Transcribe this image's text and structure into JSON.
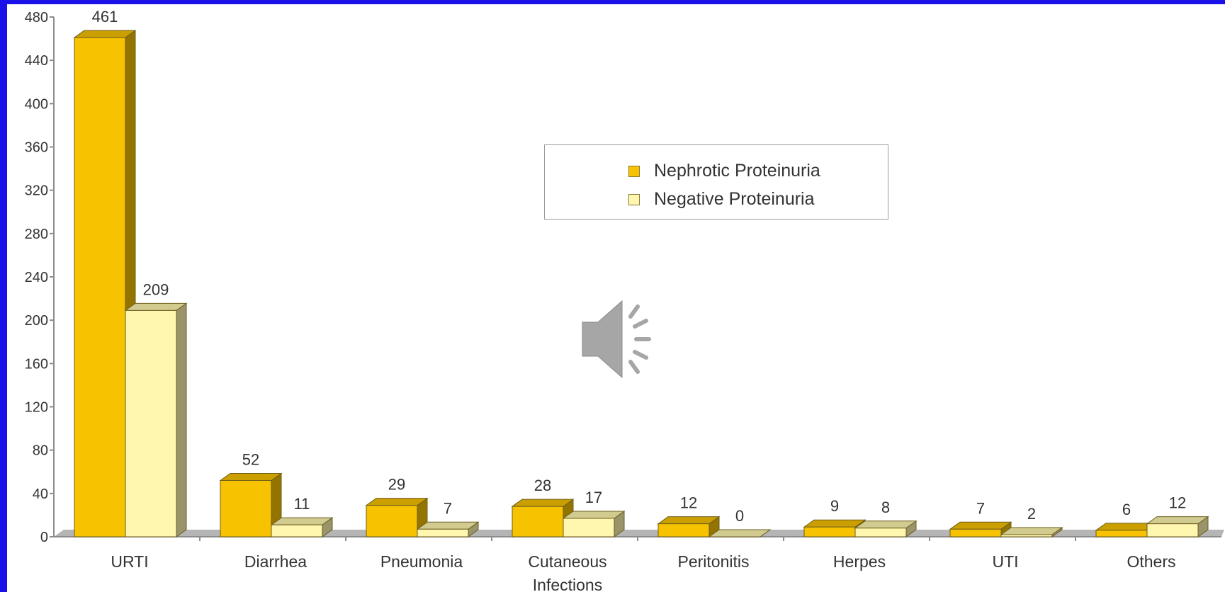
{
  "chart_data": {
    "type": "bar",
    "title": "",
    "xlabel": "",
    "ylabel": "",
    "ylim": [
      0,
      480
    ],
    "yticks": [
      0,
      40,
      80,
      120,
      160,
      200,
      240,
      280,
      320,
      360,
      400,
      440,
      480
    ],
    "categories": [
      "URTI",
      "Diarrhea",
      "Pneumonia",
      "Cutaneous Infections",
      "Peritonitis",
      "Herpes",
      "UTI",
      "Others"
    ],
    "series": [
      {
        "name": "Nephrotic Proteinuria",
        "color": "#f7c200",
        "values": [
          461,
          52,
          29,
          28,
          12,
          9,
          7,
          6
        ]
      },
      {
        "name": "Negative Proteinuria",
        "color": "#fff7b0",
        "values": [
          209,
          11,
          7,
          17,
          0,
          8,
          2,
          12
        ]
      }
    ],
    "legend_position": "top-center",
    "grid": false,
    "style": "3d"
  },
  "legend": {
    "items": [
      {
        "label": "Nephrotic Proteinuria",
        "color": "#f7c200"
      },
      {
        "label": "Negative Proteinuria",
        "color": "#fff7b0"
      }
    ]
  },
  "icons": {
    "audio": "speaker-icon"
  },
  "colors": {
    "slide_border": "#1a10e8",
    "background": "#ffffff"
  }
}
